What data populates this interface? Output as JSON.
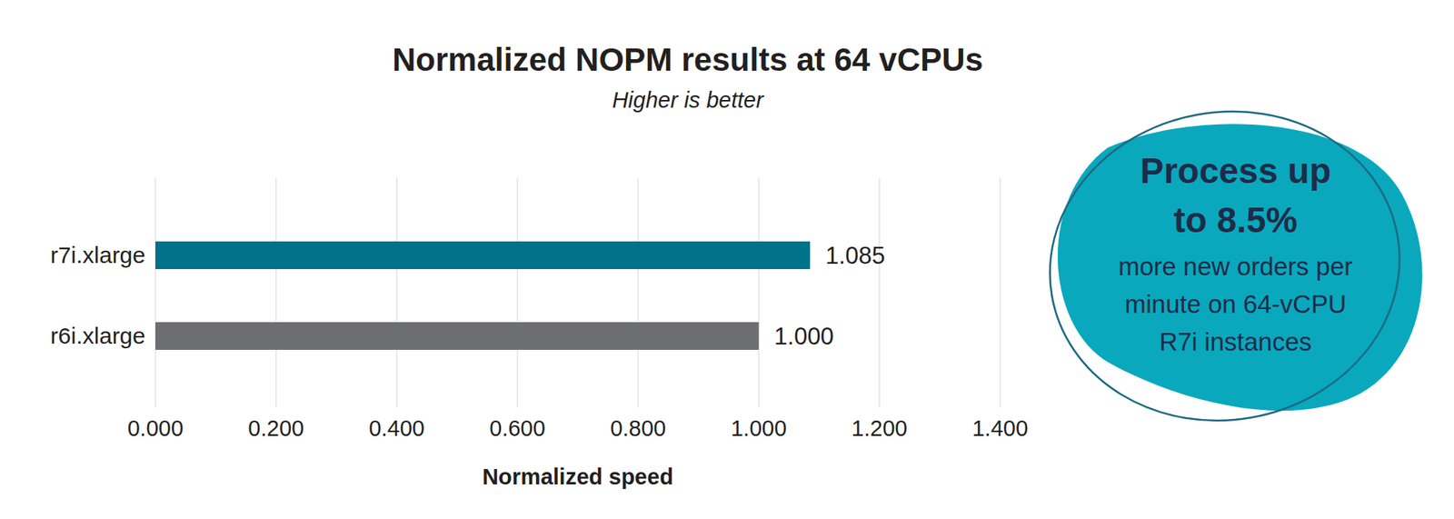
{
  "chart_data": {
    "type": "bar",
    "orientation": "horizontal",
    "title": "Normalized NOPM results at 64 vCPUs",
    "subtitle": "Higher is better",
    "xlabel": "Normalized speed",
    "categories": [
      "r7i.xlarge",
      "r6i.xlarge"
    ],
    "values": [
      1.085,
      1.0
    ],
    "value_labels": [
      "1.085",
      "1.000"
    ],
    "colors": [
      "#00728a",
      "#6d6e71"
    ],
    "xlim": [
      0,
      1.4
    ],
    "xticks": [
      {
        "value": 0,
        "label": "0.000"
      },
      {
        "value": 0.2,
        "label": "0.200"
      },
      {
        "value": 0.4,
        "label": "0.400"
      },
      {
        "value": 0.6,
        "label": "0.600"
      },
      {
        "value": 0.8,
        "label": "0.800"
      },
      {
        "value": 1.0,
        "label": "1.000"
      },
      {
        "value": 1.2,
        "label": "1.200"
      },
      {
        "value": 1.4,
        "label": "1.400"
      }
    ],
    "grid": true,
    "data_labels": true,
    "annotation": {
      "heading_lines": [
        "Process up",
        "to 8.5%"
      ],
      "body_lines": [
        "more new orders per",
        "minute on 64-vCPU",
        "R7i instances"
      ]
    }
  }
}
